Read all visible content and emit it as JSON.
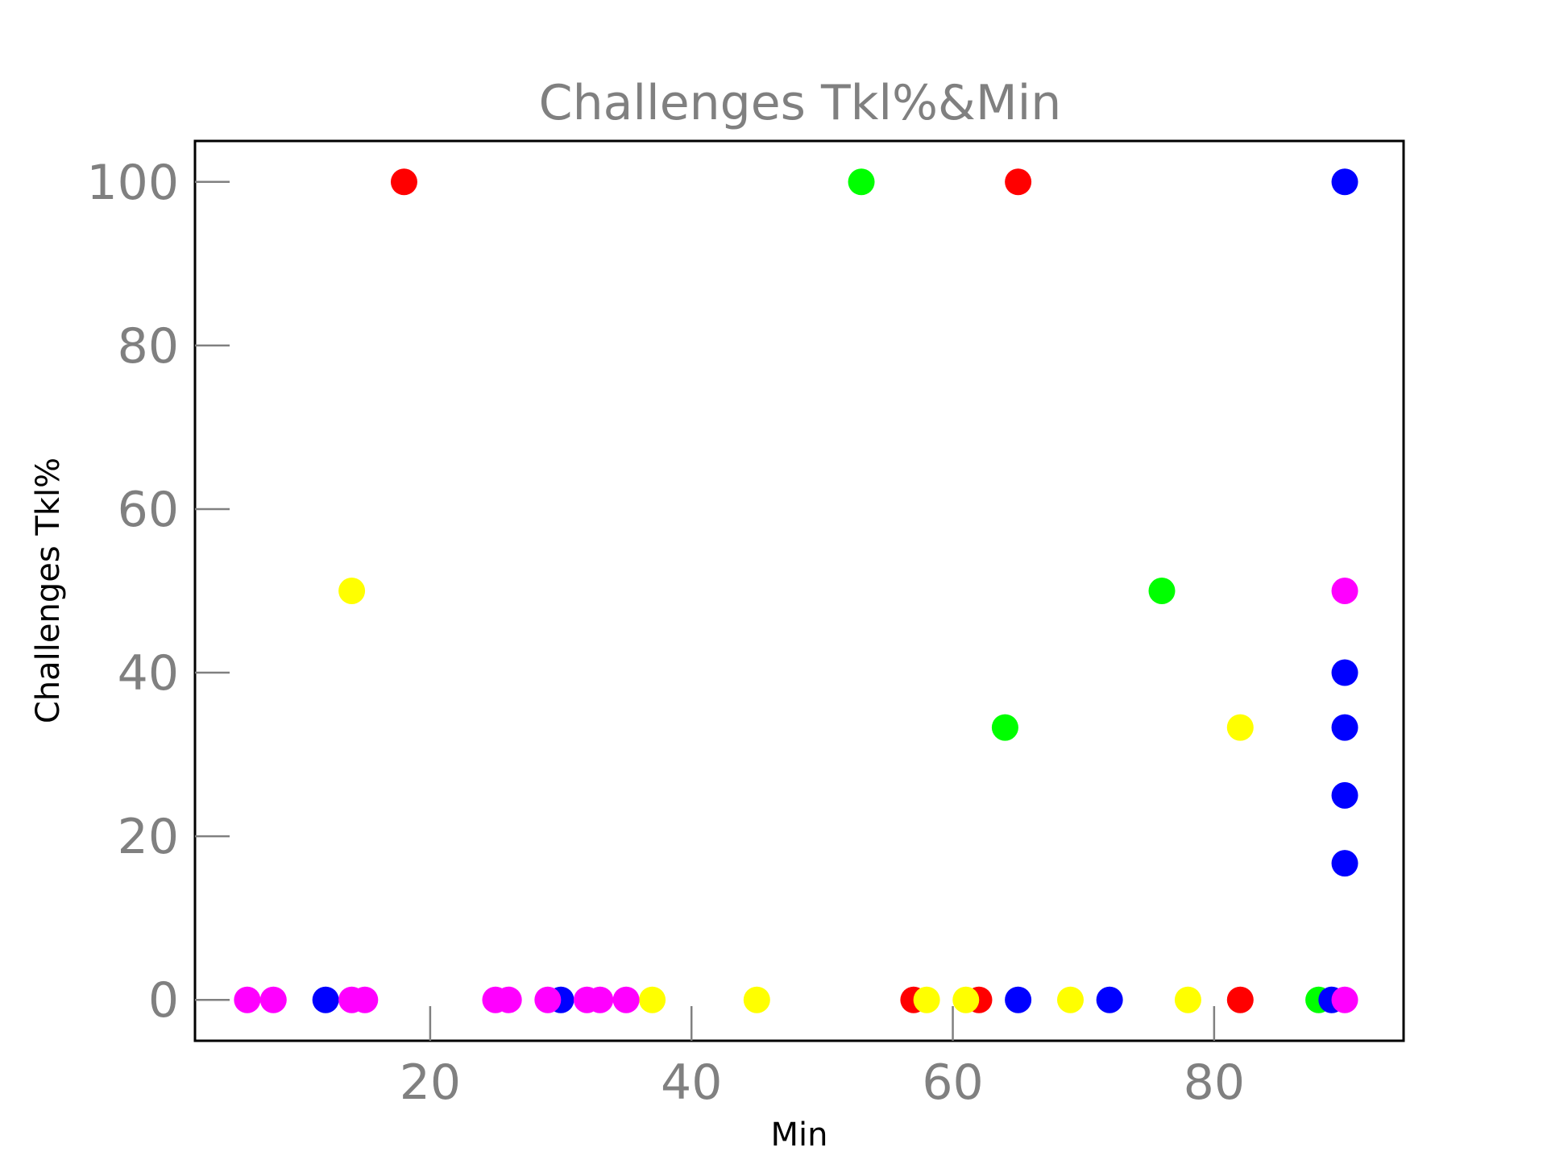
{
  "chart_data": {
    "type": "scatter",
    "title": "Challenges Tkl%&Min",
    "xlabel": "Min",
    "ylabel": "Challenges Tkl%",
    "xlim": [
      2,
      94.5
    ],
    "ylim": [
      -5,
      105
    ],
    "xticks": [
      20,
      40,
      60,
      80
    ],
    "yticks": [
      0,
      20,
      40,
      60,
      80,
      100
    ],
    "grid": false,
    "colors": {
      "red": "#ff0000",
      "green": "#00ff00",
      "blue": "#0000ff",
      "yellow": "#ffff00",
      "magenta": "#ff00ff"
    },
    "series": [
      {
        "color": "#ff0000",
        "points": [
          [
            18,
            100
          ],
          [
            65,
            100
          ],
          [
            57,
            0
          ],
          [
            62,
            0
          ],
          [
            82,
            0
          ]
        ]
      },
      {
        "color": "#00ff00",
        "points": [
          [
            53,
            100
          ],
          [
            76,
            50
          ],
          [
            64,
            33.3
          ],
          [
            88,
            0
          ]
        ]
      },
      {
        "color": "#0000ff",
        "points": [
          [
            90,
            100
          ],
          [
            90,
            40
          ],
          [
            90,
            33.3
          ],
          [
            90,
            25
          ],
          [
            90,
            16.7
          ],
          [
            12,
            0
          ],
          [
            30,
            0
          ],
          [
            65,
            0
          ],
          [
            72,
            0
          ],
          [
            89,
            0
          ]
        ]
      },
      {
        "color": "#ffff00",
        "points": [
          [
            14,
            50
          ],
          [
            82,
            33.3
          ],
          [
            37,
            0
          ],
          [
            45,
            0
          ],
          [
            58,
            0
          ],
          [
            61,
            0
          ],
          [
            69,
            0
          ],
          [
            78,
            0
          ]
        ]
      },
      {
        "color": "#ff00ff",
        "points": [
          [
            90,
            50
          ],
          [
            6,
            0
          ],
          [
            8,
            0
          ],
          [
            14,
            0
          ],
          [
            15,
            0
          ],
          [
            25,
            0
          ],
          [
            26,
            0
          ],
          [
            29,
            0
          ],
          [
            32,
            0
          ],
          [
            33,
            0
          ],
          [
            35,
            0
          ],
          [
            90,
            0
          ]
        ]
      }
    ]
  }
}
